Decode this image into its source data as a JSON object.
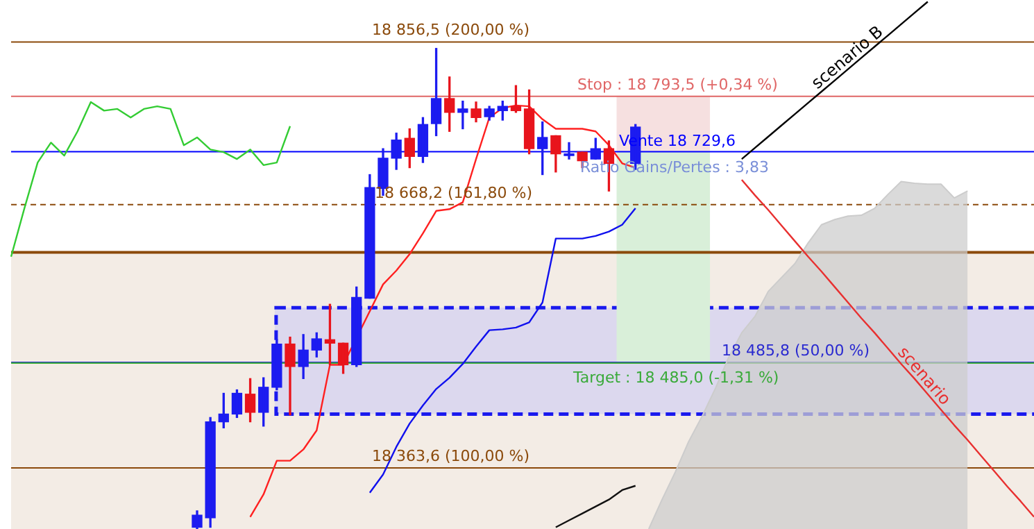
{
  "chart_data": {
    "type": "candlestick",
    "categories": [
      null,
      null,
      null,
      null,
      null,
      null,
      null,
      null,
      null,
      null,
      null,
      null,
      null,
      null,
      null,
      null,
      null,
      null,
      null,
      null,
      null,
      null,
      null,
      null,
      null,
      null,
      null,
      null,
      null,
      null,
      null,
      null,
      null,
      null,
      null,
      null,
      null,
      null,
      null,
      null,
      null,
      null,
      null,
      null,
      null,
      null,
      null,
      null,
      null,
      null,
      null,
      null,
      null,
      null,
      null,
      null,
      null,
      null,
      null,
      null,
      null,
      null,
      null,
      null,
      null,
      null,
      null,
      null,
      null,
      null,
      null,
      null,
      null,
      null,
      null,
      null,
      null,
      null
    ],
    "ohlc": [
      null,
      null,
      null,
      null,
      null,
      null,
      null,
      null,
      null,
      null,
      null,
      null,
      null,
      null,
      [
        18295,
        18314,
        18293,
        18309
      ],
      [
        18306,
        18422,
        18295,
        18417
      ],
      [
        18417,
        18450,
        18410,
        18426
      ],
      [
        18426,
        18454,
        18422,
        18450
      ],
      [
        18449,
        18467,
        18417,
        18428
      ],
      [
        18428,
        18468,
        18412,
        18457
      ],
      [
        18457,
        18512,
        18454,
        18507
      ],
      [
        18507,
        18515,
        18425,
        18481
      ],
      [
        18481,
        18518,
        18467,
        18500
      ],
      [
        18500,
        18520,
        18492,
        18513
      ],
      [
        18512,
        18553,
        18483,
        18508
      ],
      [
        18508,
        18508,
        18473,
        18483
      ],
      [
        18483,
        18573,
        18481,
        18561
      ],
      [
        18560,
        18703,
        18560,
        18688
      ],
      [
        18687,
        18733,
        18679,
        18722
      ],
      [
        18722,
        18751,
        18709,
        18743
      ],
      [
        18745,
        18756,
        18711,
        18724
      ],
      [
        18724,
        18769,
        18717,
        18761
      ],
      [
        18762,
        18849,
        18748,
        18791
      ],
      [
        18791,
        18816,
        18753,
        18775
      ],
      [
        18775,
        18788,
        18756,
        18779
      ],
      [
        18779,
        18787,
        18764,
        18769
      ],
      [
        18770,
        18782,
        18766,
        18779
      ],
      [
        18777,
        18788,
        18766,
        18782
      ],
      [
        18782,
        18806,
        18775,
        18777
      ],
      [
        18779,
        18801,
        18727,
        18733
      ],
      [
        18733,
        18764,
        18703,
        18746
      ],
      [
        18748,
        18748,
        18706,
        18727
      ],
      [
        18725,
        18740,
        18721,
        18727
      ],
      [
        18729,
        18729,
        18711,
        18719
      ],
      [
        18721,
        18745,
        18721,
        18733
      ],
      [
        18733,
        18742,
        18684,
        18716
      ],
      null,
      [
        18716,
        18761,
        18709,
        18758
      ],
      null,
      null,
      null,
      null,
      null,
      null,
      null,
      null,
      null,
      null,
      null,
      null,
      null,
      null,
      null,
      null,
      null,
      null,
      null,
      null,
      null,
      null,
      null,
      null,
      null,
      null,
      null,
      null,
      null,
      null
    ],
    "colors": [
      null,
      null,
      null,
      null,
      null,
      null,
      null,
      null,
      null,
      null,
      null,
      null,
      null,
      null,
      "#1c1cf0",
      "#1c1cf0",
      "#1c1cf0",
      "#1c1cf0",
      "#e8141c",
      "#1c1cf0",
      "#1c1cf0",
      "#e8141c",
      "#1c1cf0",
      "#1c1cf0",
      "#e8141c",
      "#e8141c",
      "#1c1cf0",
      "#1c1cf0",
      "#1c1cf0",
      "#1c1cf0",
      "#e8141c",
      "#1c1cf0",
      "#1c1cf0",
      "#e8141c",
      "#1c1cf0",
      "#e8141c",
      "#1c1cf0",
      "#1c1cf0",
      "#e8141c",
      "#e8141c",
      "#1c1cf0",
      "#e8141c",
      "#1c1cf0",
      "#e8141c",
      "#1c1cf0",
      "#e8141c",
      null,
      "#1c1cf0",
      null,
      null,
      null,
      null,
      null,
      null,
      null,
      null,
      null,
      null,
      null,
      null,
      null,
      null,
      null,
      null,
      null,
      null,
      null,
      null,
      null,
      null,
      null,
      null,
      null,
      null,
      null,
      null,
      null,
      null
    ],
    "series": [
      {
        "type": "area",
        "color": "#cccccc",
        "values": [
          null,
          null,
          null,
          null,
          null,
          null,
          null,
          null,
          null,
          null,
          null,
          null,
          null,
          null,
          null,
          null,
          null,
          null,
          null,
          null,
          null,
          null,
          null,
          null,
          null,
          null,
          null,
          null,
          null,
          null,
          null,
          null,
          null,
          null,
          null,
          null,
          null,
          null,
          null,
          null,
          null,
          null,
          null,
          null,
          null,
          null,
          null,
          null,
          18293,
          18327,
          18359,
          18394,
          18423,
          18455,
          18491,
          18520,
          18539,
          18568,
          18584,
          18600,
          18624,
          18645,
          18651,
          18655,
          18656,
          18664,
          18680,
          18695,
          18693,
          18692,
          18692,
          18676,
          18684,
          null,
          null,
          null,
          null,
          null
        ]
      },
      {
        "type": "line",
        "color": "#33cc33",
        "values": [
          18608,
          18664,
          18717,
          18740,
          18725,
          18753,
          18787,
          18777,
          18779,
          18769,
          18779,
          18782,
          18779,
          18737,
          18746,
          18732,
          18729,
          18721,
          18732,
          18714,
          18717,
          18759,
          null,
          null,
          null,
          null,
          null,
          null,
          null,
          null,
          null,
          null,
          null,
          null,
          null,
          null,
          null,
          null,
          null,
          null,
          null,
          null,
          null,
          null,
          null,
          null,
          null,
          null,
          null,
          null,
          null,
          null,
          null,
          null,
          null,
          null,
          null,
          null,
          null,
          null,
          null,
          null,
          null,
          null,
          null,
          null,
          null,
          null,
          null,
          null,
          null,
          null,
          null,
          null,
          null,
          null,
          null,
          null
        ]
      },
      {
        "type": "line",
        "color": "#ff2020",
        "values": [
          null,
          null,
          null,
          null,
          null,
          null,
          null,
          null,
          null,
          null,
          null,
          null,
          null,
          null,
          null,
          null,
          null,
          null,
          18307,
          18333,
          18372,
          18372,
          18385,
          18407,
          18483,
          18483,
          null,
          null,
          18576,
          18592,
          18611,
          18635,
          18661,
          18663,
          18671,
          18721,
          18769,
          18780,
          18783,
          18782,
          18767,
          18756,
          18756,
          18756,
          18753,
          18737,
          18716,
          18711,
          null,
          null,
          null,
          null,
          null,
          null,
          null,
          null,
          null,
          null,
          null,
          null,
          null,
          null,
          null,
          null,
          null,
          null,
          null,
          null,
          null,
          null,
          null,
          null,
          null,
          null,
          null,
          null,
          null,
          null
        ]
      },
      {
        "type": "line",
        "color": "#1010ee",
        "values": [
          null,
          null,
          null,
          null,
          null,
          null,
          null,
          null,
          null,
          null,
          null,
          null,
          null,
          null,
          null,
          null,
          null,
          null,
          null,
          null,
          null,
          null,
          null,
          null,
          null,
          null,
          null,
          18335,
          18356,
          18388,
          18415,
          18436,
          18455,
          18468,
          18484,
          18504,
          18523,
          18524,
          18526,
          18532,
          18555,
          18629,
          18629,
          18629,
          18632,
          18637,
          18645,
          18664,
          null,
          null,
          null,
          null,
          null,
          null,
          null,
          null,
          null,
          null,
          null,
          null,
          null,
          null,
          null,
          null,
          null,
          null,
          null,
          null,
          null,
          null,
          null,
          null,
          null,
          null,
          null,
          null,
          null,
          null
        ]
      },
      {
        "type": "line",
        "color": "#111111",
        "values": [
          null,
          null,
          null,
          null,
          null,
          null,
          null,
          null,
          null,
          null,
          null,
          null,
          null,
          null,
          null,
          null,
          null,
          null,
          null,
          null,
          null,
          null,
          null,
          null,
          null,
          null,
          null,
          null,
          null,
          null,
          null,
          null,
          null,
          null,
          null,
          null,
          null,
          null,
          null,
          null,
          null,
          18295,
          18303,
          18311,
          18319,
          18327,
          18338,
          18343,
          null,
          null,
          null,
          null,
          null,
          null,
          null,
          null,
          null,
          null,
          null,
          null,
          null,
          null,
          null,
          null,
          null,
          null,
          null,
          null,
          null,
          null,
          null,
          null,
          null,
          null,
          null,
          null,
          null,
          null
        ]
      },
      {
        "type": "line",
        "name": "scenario B",
        "color": "#000000",
        "values": [
          null,
          null,
          null,
          null,
          null,
          null,
          null,
          null,
          null,
          null,
          null,
          null,
          null,
          null,
          null,
          null,
          null,
          null,
          null,
          null,
          null,
          null,
          null,
          null,
          null,
          null,
          null,
          null,
          null,
          null,
          null,
          null,
          null,
          null,
          null,
          null,
          null,
          null,
          null,
          null,
          null,
          null,
          null,
          null,
          null,
          null,
          null,
          null,
          null,
          null,
          null,
          null,
          null,
          null,
          null,
          18721,
          18734,
          18747,
          18760,
          18773,
          18786,
          18799,
          18812,
          18825,
          18838,
          18851,
          18864,
          18877,
          18890,
          18903,
          null,
          null,
          null,
          null,
          null,
          null,
          null,
          null
        ]
      },
      {
        "type": "line",
        "name": "scenario",
        "color": "#e83030",
        "values": [
          null,
          null,
          null,
          null,
          null,
          null,
          null,
          null,
          null,
          null,
          null,
          null,
          null,
          null,
          null,
          null,
          null,
          null,
          null,
          null,
          null,
          null,
          null,
          null,
          null,
          null,
          null,
          null,
          null,
          null,
          null,
          null,
          null,
          null,
          null,
          null,
          null,
          null,
          null,
          null,
          null,
          null,
          null,
          null,
          null,
          null,
          null,
          null,
          null,
          null,
          null,
          null,
          null,
          null,
          null,
          18697,
          18679,
          18662,
          18644,
          18626,
          18608,
          18591,
          18573,
          18555,
          18537,
          18520,
          18502,
          18484,
          18467,
          18449,
          18431,
          18413,
          18396,
          18378,
          18360,
          18342,
          18325,
          18307
        ]
      }
    ],
    "ylim": [
      18293,
      18905
    ],
    "tick_labels": false,
    "bands": [
      {
        "axis": "y",
        "from": 18293,
        "to": 18613,
        "color": "#f3ece5"
      },
      {
        "axis": "y",
        "from": 18426,
        "to": 18549,
        "color": "#dcd8ee"
      },
      {
        "axis": "y",
        "from": 18729.6,
        "to": 18793.5,
        "color": "#f6e0e0"
      },
      {
        "axis": "y",
        "from": 18485.0,
        "to": 18729.6,
        "color": "#d9efd9"
      }
    ],
    "ref_lines": [
      {
        "axis": "y",
        "value": 18856.5,
        "label": "18 856,5 (200,00 %)",
        "color": "#8b4a0b"
      },
      {
        "axis": "y",
        "value": 18793.5,
        "label": "Stop : 18 793,5 (+0,34 %)",
        "color": "#e06666"
      },
      {
        "axis": "y",
        "value": 18729.6,
        "label": "Vente 18 729,6",
        "color": "#0000ff"
      },
      {
        "axis": "y",
        "value": 18668.2,
        "label": "18 668,2 (161,80 %)",
        "color": "#8b4a0b",
        "line_style": "dashed"
      },
      {
        "axis": "y",
        "value": 18613,
        "label": null,
        "color": "#8b4a0b"
      },
      {
        "axis": "y",
        "value": 18485.8,
        "label": "18 485,8 (50,00 %)",
        "color": "#2a2ad0"
      },
      {
        "axis": "y",
        "value": 18485.0,
        "label": "Target : 18 485,0 (-1,31 %)",
        "color": "#3aaa3a"
      },
      {
        "axis": "y",
        "value": 18363.6,
        "label": "18 363,6 (100,00 %)",
        "color": "#8b4a0b"
      }
    ],
    "annotations": [
      "Ratio Gains/Pertes : 3,83"
    ]
  }
}
